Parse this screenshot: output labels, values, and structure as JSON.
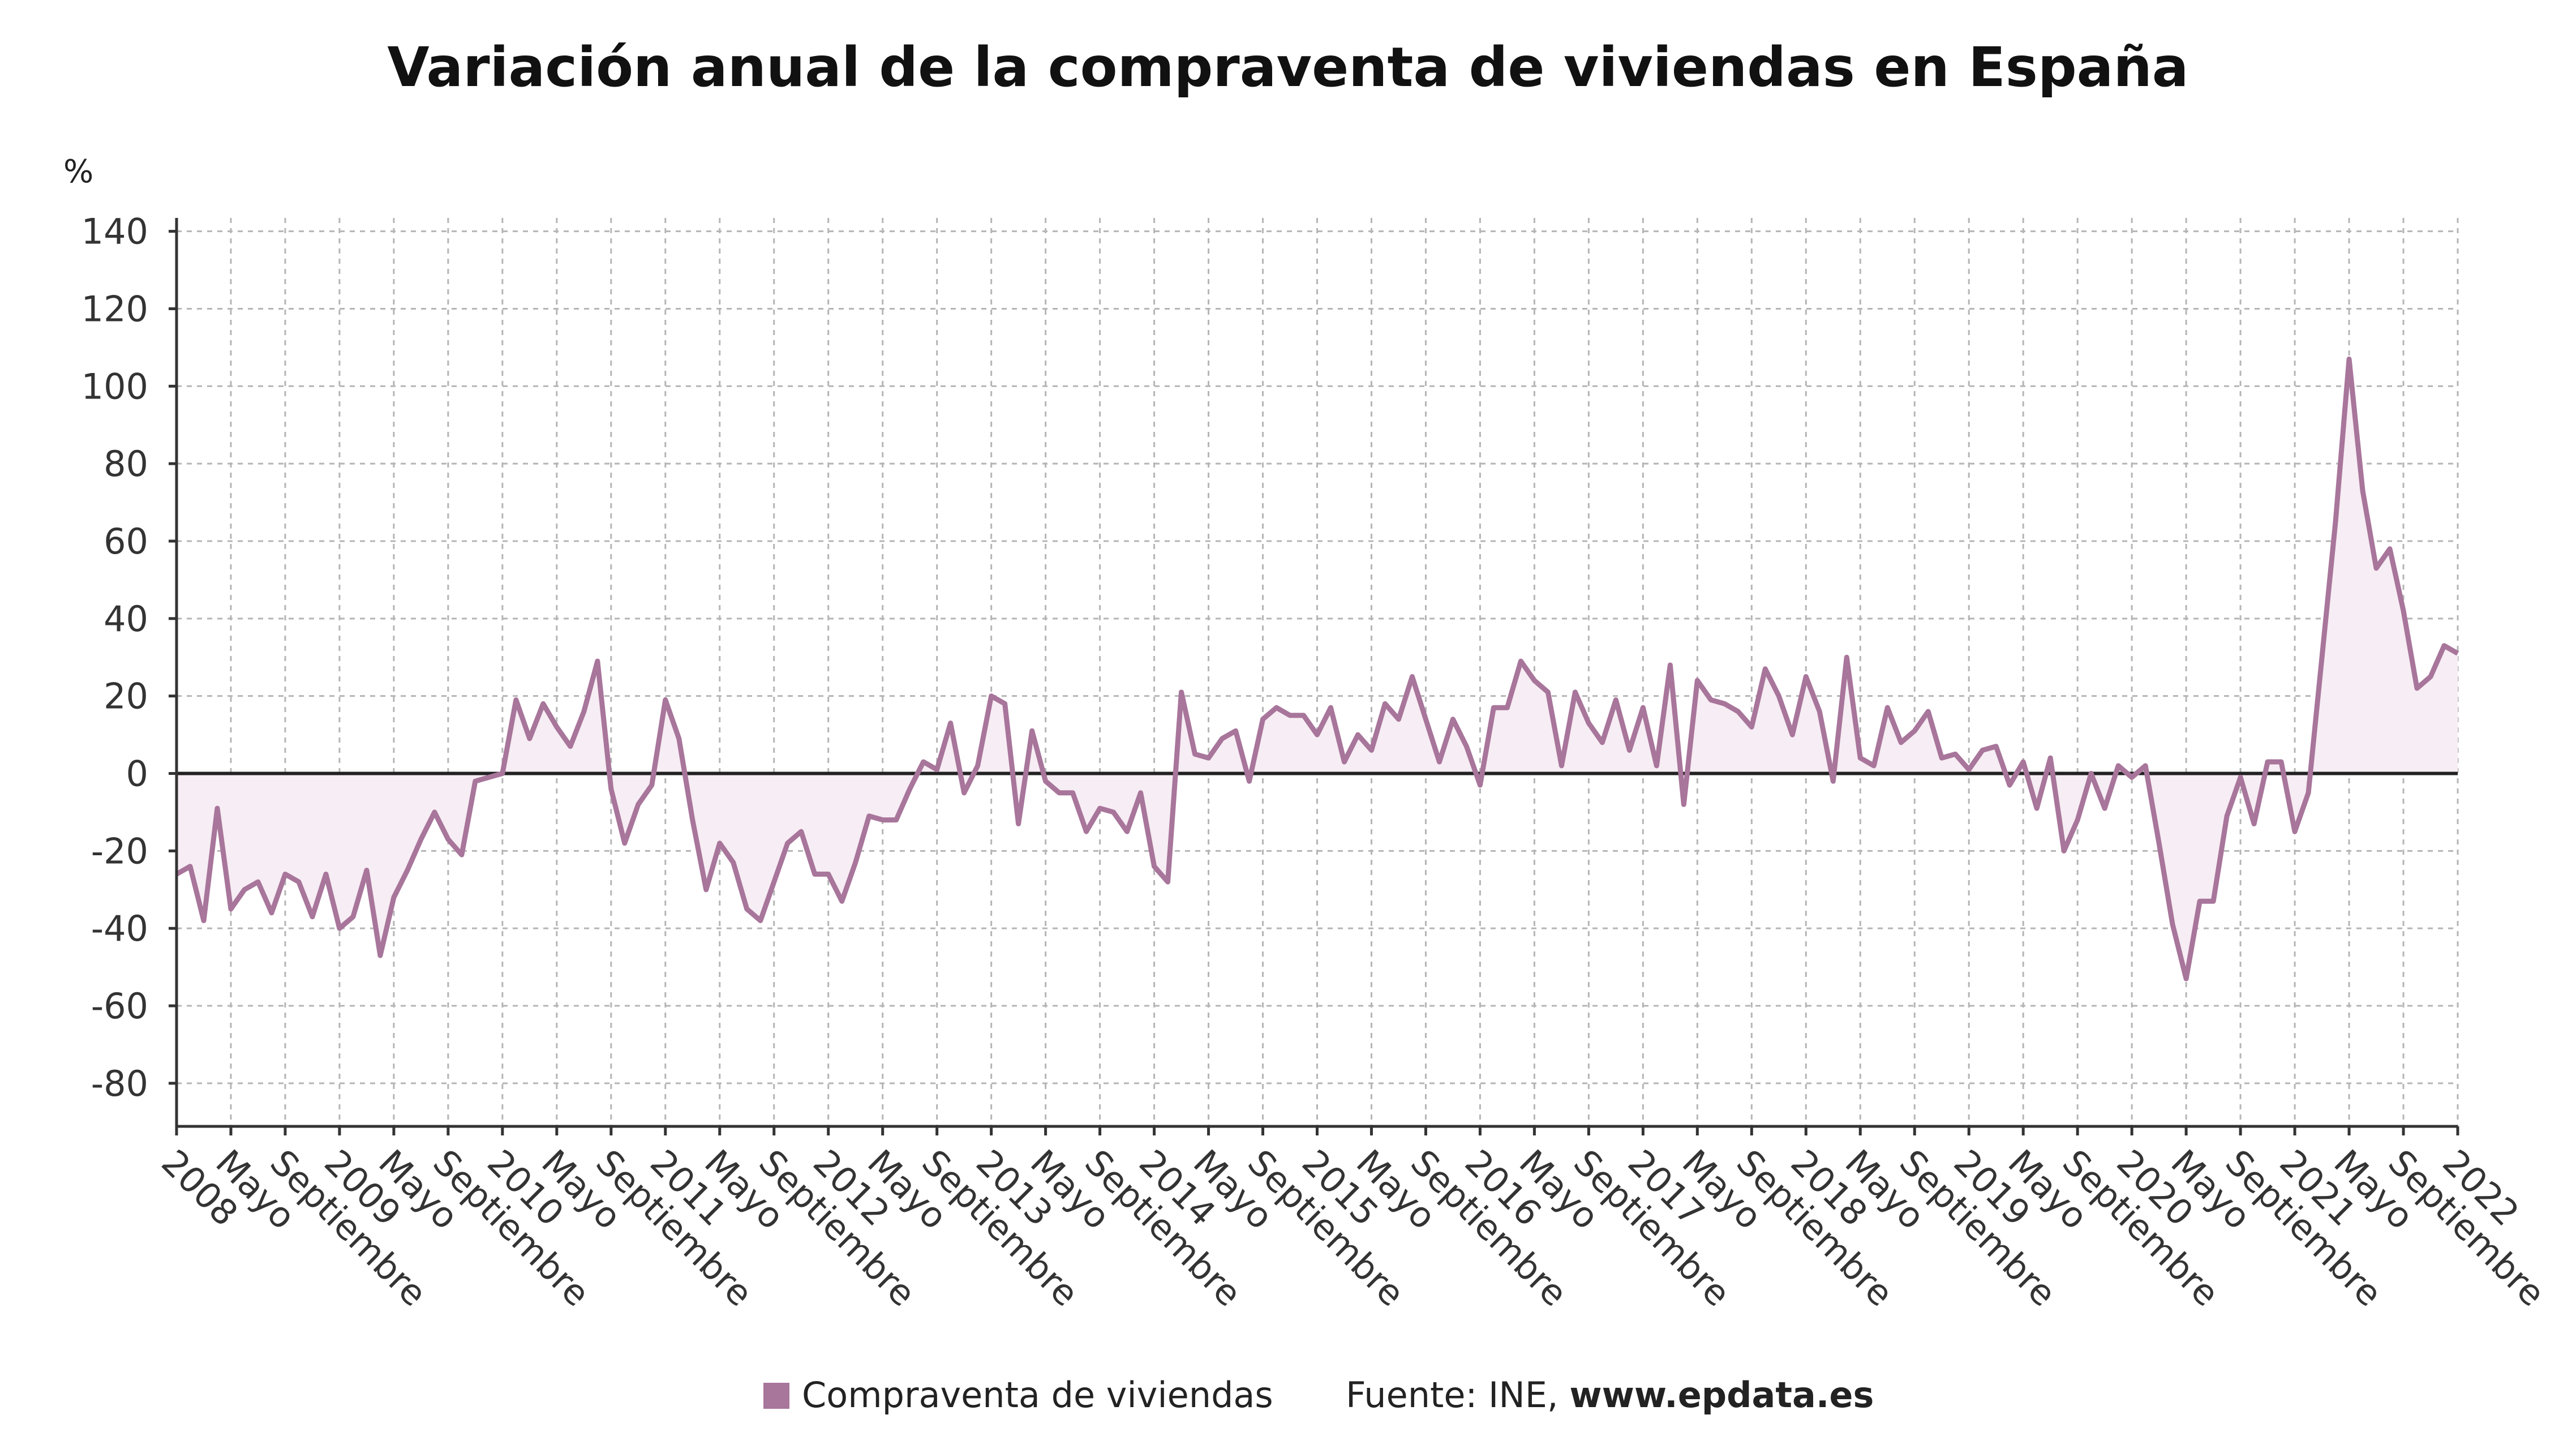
{
  "colors": {
    "series": "#a8759b",
    "area": "#f7edf4",
    "grid": "#b5b5b5",
    "axis": "#333333",
    "zero": "#222222"
  },
  "chart_data": {
    "type": "line",
    "title": "Variación anual de la compraventa de viviendas en España",
    "ylabel": "%",
    "xlabel": "",
    "ylim": [
      -90,
      145
    ],
    "yticks": [
      140,
      120,
      100,
      80,
      60,
      40,
      20,
      0,
      -20,
      -40,
      -60,
      -80
    ],
    "ytick_labels": [
      "140",
      "120",
      "100",
      "80",
      "60",
      "40",
      "20",
      "0",
      "-20",
      "-40",
      "-60",
      "-80"
    ],
    "grid": true,
    "area_fill": true,
    "legend_position": "bottom",
    "xtick_labels": [
      "2008",
      "Mayo",
      "Septiembre",
      "2009",
      "Mayo",
      "Septiembre",
      "2010",
      "Mayo",
      "Septiembre",
      "2011",
      "Mayo",
      "Septiembre",
      "2012",
      "Mayo",
      "Septiembre",
      "2013",
      "Mayo",
      "Septiembre",
      "2014",
      "Mayo",
      "Septiembre",
      "2015",
      "Mayo",
      "Septiembre",
      "2016",
      "Mayo",
      "Septiembre",
      "2017",
      "Mayo",
      "Septiembre",
      "2018",
      "Mayo",
      "Septiembre",
      "2019",
      "Mayo",
      "Septiembre",
      "2020",
      "Mayo",
      "Septiembre",
      "2021",
      "Mayo",
      "Septiembre",
      "2022"
    ],
    "series": [
      {
        "name": "Compraventa de viviendas",
        "values": [
          -26,
          -24,
          -38,
          -9,
          -35,
          -30,
          -28,
          -36,
          -26,
          -28,
          -37,
          -26,
          -40,
          -37,
          -25,
          -47,
          -32,
          -25,
          -17,
          -10,
          -17,
          -21,
          -2,
          -1,
          0,
          19,
          9,
          18,
          12,
          7,
          16,
          29,
          -4,
          -18,
          -8,
          -3,
          19,
          9,
          -12,
          -30,
          -18,
          -23,
          -35,
          -38,
          -28,
          -18,
          -15,
          -26,
          -26,
          -33,
          -23,
          -11,
          -12,
          -12,
          -4,
          3,
          1,
          13,
          -5,
          2,
          20,
          18,
          -13,
          11,
          -2,
          -5,
          -5,
          -15,
          -9,
          -10,
          -15,
          -5,
          -24,
          -28,
          21,
          5,
          4,
          9,
          11,
          -2,
          14,
          17,
          15,
          15,
          10,
          17,
          3,
          10,
          6,
          18,
          14,
          25,
          14,
          3,
          14,
          7,
          -3,
          17,
          17,
          29,
          24,
          21,
          2,
          21,
          13,
          8,
          19,
          6,
          17,
          2,
          28,
          -8,
          24,
          19,
          18,
          16,
          12,
          27,
          20,
          10,
          25,
          16,
          -2,
          30,
          4,
          2,
          17,
          8,
          11,
          16,
          4,
          5,
          1,
          6,
          7,
          -3,
          3,
          -9,
          4,
          -20,
          -12,
          0,
          -9,
          2,
          -1,
          2,
          -18,
          -39,
          -53,
          -33,
          -33,
          -11,
          -1,
          -13,
          3,
          3,
          -15,
          -5,
          30,
          65,
          107,
          73,
          53,
          58,
          42,
          22,
          25,
          33,
          31
        ]
      }
    ]
  },
  "legend": {
    "items": [
      {
        "label": "Compraventa de viviendas",
        "color": "#a8759b"
      }
    ]
  },
  "source": {
    "label": "Fuente: INE, ",
    "url": "www.epdata.es"
  }
}
